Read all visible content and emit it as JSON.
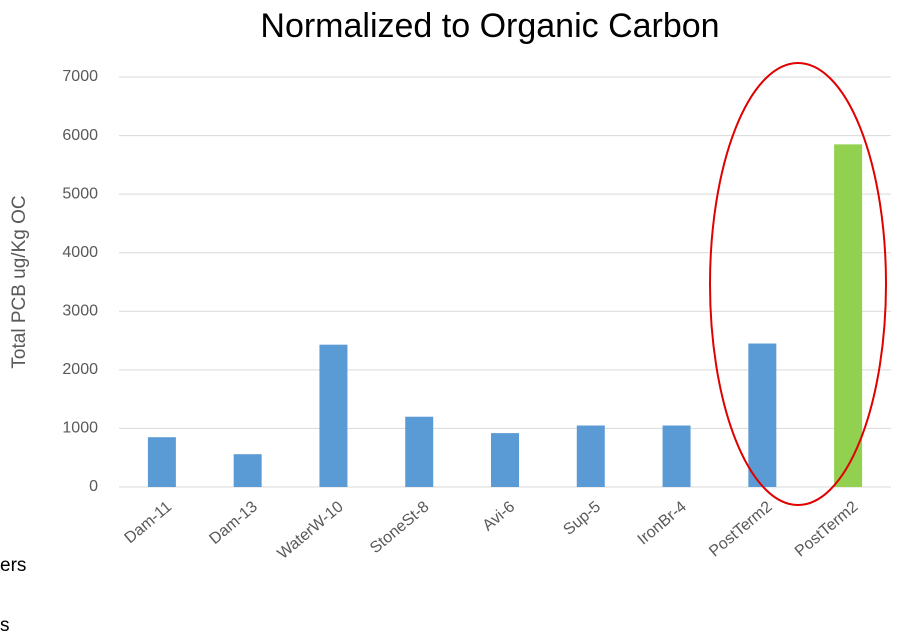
{
  "chart_data": {
    "type": "bar",
    "title": "Normalized to Organic Carbon",
    "y_label": "Total PCB ug/Kg OC",
    "categories": [
      "Dam-11",
      "Dam-13",
      "WaterW-10",
      "StoneSt-8",
      "Avi-6",
      "Sup-5",
      "IronBr-4",
      "PostTerm2",
      "PostTerm2"
    ],
    "values": [
      850,
      560,
      2430,
      1200,
      920,
      1050,
      1050,
      2450,
      5850
    ],
    "colors": [
      "#5b9bd5",
      "#5b9bd5",
      "#5b9bd5",
      "#5b9bd5",
      "#5b9bd5",
      "#5b9bd5",
      "#5b9bd5",
      "#5b9bd5",
      "#92d050"
    ],
    "ylim": [
      0,
      7000
    ],
    "yticks": [
      0,
      1000,
      2000,
      3000,
      4000,
      5000,
      6000,
      7000
    ],
    "grid": true,
    "annotations": [
      "ers",
      "s"
    ]
  }
}
